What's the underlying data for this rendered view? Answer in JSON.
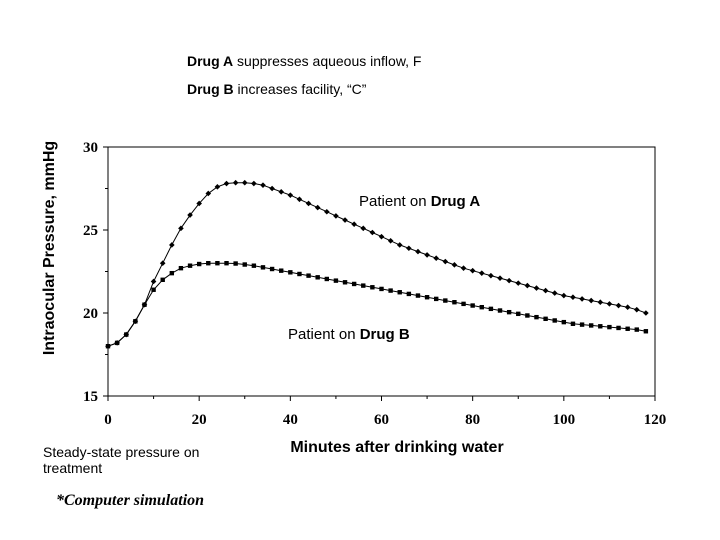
{
  "notes": {
    "drug_a_bold": "Drug A",
    "drug_a_text": " suppresses aqueous inflow, F",
    "drug_b_bold": "Drug B",
    "drug_b_text": " increases facility, “C”"
  },
  "footer": {
    "steady_state": "Steady-state pressure on treatment",
    "simulation": "*Computer simulation"
  },
  "chart_data": {
    "type": "line",
    "title": "",
    "xlabel": "Minutes after drinking water",
    "ylabel": "Intraocular Pressure, mmHg",
    "xlim": [
      0,
      120
    ],
    "ylim": [
      15,
      30
    ],
    "xticks": [
      0,
      20,
      40,
      60,
      80,
      100,
      120
    ],
    "yticks": [
      15,
      20,
      25,
      30
    ],
    "grid": false,
    "series": [
      {
        "name": "Drug A",
        "label_prefix": "Patient on ",
        "marker": "diamond",
        "color": "#000000",
        "x": [
          0,
          2,
          4,
          6,
          8,
          10,
          12,
          14,
          16,
          18,
          20,
          22,
          24,
          26,
          28,
          30,
          32,
          34,
          36,
          38,
          40,
          42,
          44,
          46,
          48,
          50,
          52,
          54,
          56,
          58,
          60,
          62,
          64,
          66,
          68,
          70,
          72,
          74,
          76,
          78,
          80,
          82,
          84,
          86,
          88,
          90,
          92,
          94,
          96,
          98,
          100,
          102,
          104,
          106,
          108,
          110,
          112,
          114,
          116,
          118
        ],
        "y": [
          18.0,
          18.2,
          18.7,
          19.5,
          20.5,
          21.9,
          23.0,
          24.1,
          25.1,
          25.9,
          26.6,
          27.2,
          27.6,
          27.8,
          27.85,
          27.85,
          27.8,
          27.7,
          27.5,
          27.3,
          27.1,
          26.85,
          26.6,
          26.35,
          26.1,
          25.85,
          25.6,
          25.35,
          25.1,
          24.85,
          24.6,
          24.35,
          24.1,
          23.9,
          23.7,
          23.5,
          23.3,
          23.1,
          22.9,
          22.7,
          22.55,
          22.4,
          22.25,
          22.1,
          21.95,
          21.8,
          21.65,
          21.5,
          21.35,
          21.2,
          21.05,
          20.95,
          20.85,
          20.75,
          20.65,
          20.55,
          20.45,
          20.35,
          20.2,
          20.0
        ]
      },
      {
        "name": "Drug B",
        "label_prefix": "Patient on ",
        "marker": "square",
        "color": "#000000",
        "x": [
          0,
          2,
          4,
          6,
          8,
          10,
          12,
          14,
          16,
          18,
          20,
          22,
          24,
          26,
          28,
          30,
          32,
          34,
          36,
          38,
          40,
          42,
          44,
          46,
          48,
          50,
          52,
          54,
          56,
          58,
          60,
          62,
          64,
          66,
          68,
          70,
          72,
          74,
          76,
          78,
          80,
          82,
          84,
          86,
          88,
          90,
          92,
          94,
          96,
          98,
          100,
          102,
          104,
          106,
          108,
          110,
          112,
          114,
          116,
          118
        ],
        "y": [
          18.0,
          18.2,
          18.7,
          19.5,
          20.5,
          21.4,
          22.0,
          22.4,
          22.7,
          22.85,
          22.95,
          23.0,
          23.0,
          23.0,
          22.98,
          22.92,
          22.85,
          22.75,
          22.65,
          22.55,
          22.45,
          22.35,
          22.25,
          22.15,
          22.05,
          21.95,
          21.85,
          21.75,
          21.65,
          21.55,
          21.45,
          21.35,
          21.25,
          21.15,
          21.05,
          20.95,
          20.85,
          20.75,
          20.65,
          20.55,
          20.45,
          20.35,
          20.25,
          20.15,
          20.05,
          19.95,
          19.85,
          19.75,
          19.65,
          19.55,
          19.45,
          19.35,
          19.3,
          19.25,
          19.2,
          19.15,
          19.1,
          19.05,
          19.0,
          18.9
        ]
      }
    ]
  }
}
